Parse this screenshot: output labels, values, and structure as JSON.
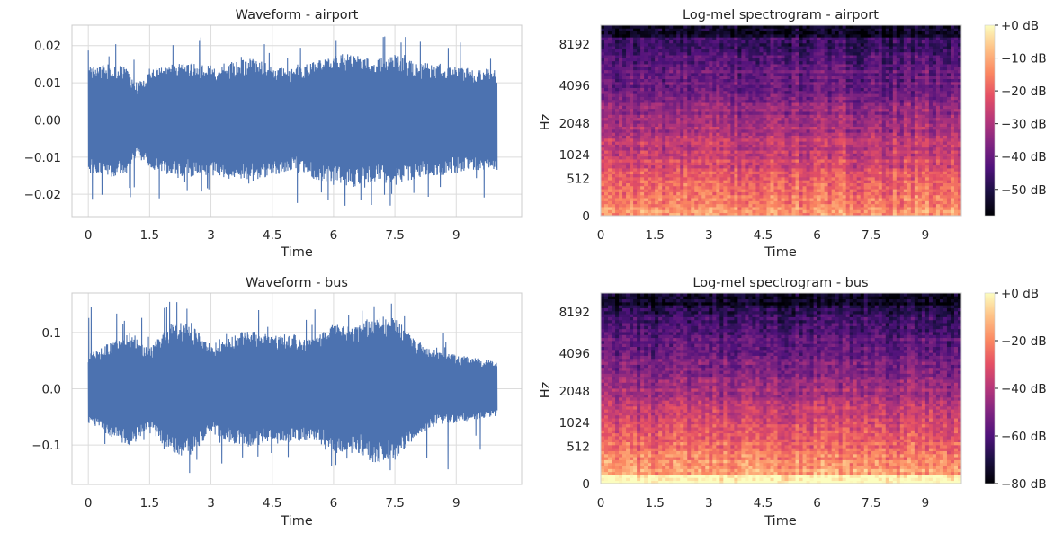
{
  "chart_data": [
    {
      "type": "line",
      "title": "Waveform - airport",
      "xlabel": "Time",
      "ylabel": "",
      "xlim": [
        -0.4,
        10.6
      ],
      "ylim": [
        -0.026,
        0.0255
      ],
      "xticks": [
        0,
        1.5,
        3,
        4.5,
        6,
        7.5,
        9
      ],
      "xtick_labels": [
        "0",
        "1.5",
        "3",
        "4.5",
        "6",
        "7.5",
        "9"
      ],
      "yticks": [
        0.02,
        0.01,
        0.0,
        -0.01,
        -0.02
      ],
      "ytick_labels": [
        "0.02",
        "0.01",
        "0.00",
        "−0.01",
        "−0.02"
      ],
      "duration": 10,
      "color": "#4c72b0",
      "envelope": {
        "time": [
          0,
          0.5,
          0.9,
          1.2,
          1.6,
          2.0,
          2.5,
          3.0,
          3.5,
          4.0,
          4.5,
          5.0,
          5.5,
          6.0,
          6.5,
          7.0,
          7.5,
          8.0,
          8.5,
          9.0,
          9.5,
          10.0
        ],
        "amplitude": [
          0.013,
          0.014,
          0.0135,
          0.009,
          0.0125,
          0.0135,
          0.014,
          0.0135,
          0.0145,
          0.015,
          0.0135,
          0.0125,
          0.0145,
          0.016,
          0.0165,
          0.015,
          0.016,
          0.0145,
          0.014,
          0.013,
          0.0125,
          0.0125
        ]
      },
      "peak_min": -0.0235,
      "peak_max": 0.0235
    },
    {
      "type": "heatmap",
      "title": "Log-mel spectrogram - airport",
      "xlabel": "Time",
      "ylabel": "Hz",
      "xticks": [
        0,
        1.5,
        3,
        4.5,
        6,
        7.5,
        9
      ],
      "xtick_labels": [
        "0",
        "1.5",
        "3",
        "4.5",
        "6",
        "7.5",
        "9"
      ],
      "yticks": [
        0,
        512,
        1024,
        2048,
        4096,
        8192
      ],
      "ytick_labels": [
        "0",
        "512",
        "1024",
        "2048",
        "4096",
        "8192"
      ],
      "fmax": 11025,
      "duration": 10,
      "colormap": "magma",
      "colorbar": {
        "vmin": -58,
        "vmax": 0,
        "ticks": [
          0,
          -10,
          -20,
          -30,
          -40,
          -50
        ],
        "tick_labels": [
          "+0 dB",
          "−10 dB",
          "−20 dB",
          "−30 dB",
          "−40 dB",
          "−50 dB"
        ]
      },
      "low_freq_level": 0.8,
      "high_freq_level": 0.22,
      "top_band_level": 0.08
    },
    {
      "type": "line",
      "title": "Waveform - bus",
      "xlabel": "Time",
      "ylabel": "",
      "xlim": [
        -0.4,
        10.6
      ],
      "ylim": [
        -0.17,
        0.17
      ],
      "xticks": [
        0,
        1.5,
        3,
        4.5,
        6,
        7.5,
        9
      ],
      "xtick_labels": [
        "0",
        "1.5",
        "3",
        "4.5",
        "6",
        "7.5",
        "9"
      ],
      "yticks": [
        0.1,
        0.0,
        -0.1
      ],
      "ytick_labels": [
        "0.1",
        "0.0",
        "−0.1"
      ],
      "duration": 10,
      "color": "#4c72b0",
      "envelope": {
        "time": [
          0,
          0.5,
          1.0,
          1.5,
          2.0,
          2.5,
          3.0,
          3.5,
          4.0,
          4.5,
          5.0,
          5.5,
          6.0,
          6.5,
          7.0,
          7.5,
          8.0,
          8.5,
          9.0,
          9.5,
          10.0
        ],
        "amplitude": [
          0.055,
          0.075,
          0.095,
          0.065,
          0.105,
          0.11,
          0.07,
          0.09,
          0.095,
          0.085,
          0.09,
          0.08,
          0.105,
          0.1,
          0.12,
          0.115,
          0.08,
          0.06,
          0.055,
          0.05,
          0.045
        ]
      },
      "peak_min": -0.155,
      "peak_max": 0.155
    },
    {
      "type": "heatmap",
      "title": "Log-mel spectrogram - bus",
      "xlabel": "Time",
      "ylabel": "Hz",
      "xticks": [
        0,
        1.5,
        3,
        4.5,
        6,
        7.5,
        9
      ],
      "xtick_labels": [
        "0",
        "1.5",
        "3",
        "4.5",
        "6",
        "7.5",
        "9"
      ],
      "yticks": [
        0,
        512,
        1024,
        2048,
        4096,
        8192
      ],
      "ytick_labels": [
        "0",
        "512",
        "1024",
        "2048",
        "4096",
        "8192"
      ],
      "fmax": 11025,
      "duration": 10,
      "colormap": "magma",
      "colorbar": {
        "vmin": -80,
        "vmax": 0,
        "ticks": [
          0,
          -20,
          -40,
          -60,
          -80
        ],
        "tick_labels": [
          "+0 dB",
          "−20 dB",
          "−40 dB",
          "−60 dB",
          "−80 dB"
        ]
      },
      "low_freq_level": 0.88,
      "high_freq_level": 0.18,
      "top_band_level": 0.04
    }
  ]
}
